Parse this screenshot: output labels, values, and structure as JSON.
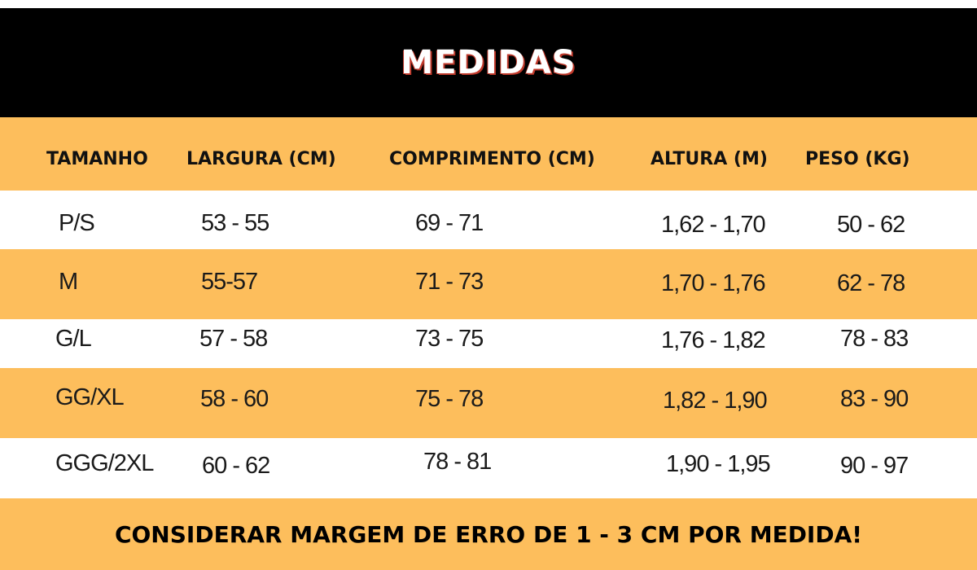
{
  "title": "MEDIDAS",
  "colors": {
    "title_band": "#000000",
    "title_text": "#ffffff",
    "accent_band": "#fdbe5c",
    "text": "#111111"
  },
  "table": {
    "headers": [
      "TAMANHO",
      "LARGURA (CM)",
      "COMPRIMENTO (CM)",
      "ALTURA (M)",
      "PESO (KG)"
    ],
    "rows": [
      [
        "P/S",
        "53 - 55",
        "69 - 71",
        "1,62 - 1,70",
        "50 - 62"
      ],
      [
        "M",
        "55-57",
        "71 - 73",
        "1,70 - 1,76",
        "62 - 78"
      ],
      [
        "G/L",
        "57 - 58",
        "73 - 75",
        "1,76 - 1,82",
        "78 - 83"
      ],
      [
        "GG/XL",
        "58 - 60",
        "75 - 78",
        "1,82 - 1,90",
        "83 - 90"
      ],
      [
        "GGG/2XL",
        "60 - 62",
        "78 - 81",
        "1,90 - 1,95",
        "90 - 97"
      ]
    ]
  },
  "footer": "CONSIDERAR MARGEM DE ERRO DE 1 - 3 CM POR MEDIDA!"
}
